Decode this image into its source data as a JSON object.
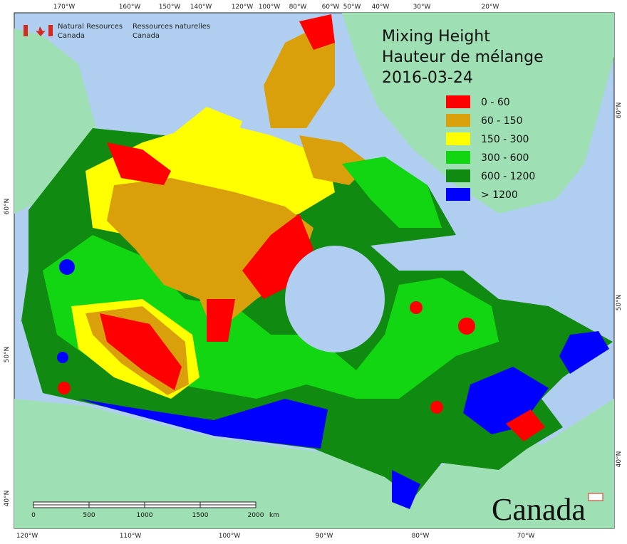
{
  "header": {
    "org_en": [
      "Natural Resources",
      "Canada"
    ],
    "org_fr": [
      "Ressources naturelles",
      "Canada"
    ]
  },
  "title": [
    "Mixing Height",
    "Hauteur de mélange",
    "2016-03-24"
  ],
  "legend": [
    {
      "label": "0 - 60",
      "color": "#ff0000"
    },
    {
      "label": "60 - 150",
      "color": "#daa00c"
    },
    {
      "label": "150 - 300",
      "color": "#ffff00"
    },
    {
      "label": "300 - 600",
      "color": "#11d611"
    },
    {
      "label": "600 - 1200",
      "color": "#108a10"
    },
    {
      "label": "> 1200",
      "color": "#0000ff"
    }
  ],
  "top_labels": [
    "170°W",
    "160°W",
    "150°W",
    "140°W",
    "120°W",
    "100°W",
    "80°W",
    "60°W",
    "50°W",
    "40°W",
    "30°W",
    "20°W"
  ],
  "bottom_labels": [
    "120°W",
    "110°W",
    "100°W",
    "90°W",
    "80°W",
    "70°W"
  ],
  "left_labels": [
    "60°N",
    "50°N",
    "40°N"
  ],
  "right_labels": [
    "60°N",
    "50°N",
    "40°N"
  ],
  "scale": {
    "ticks": [
      0,
      500,
      1000,
      1500,
      2000
    ],
    "unit": "km"
  },
  "wordmark": "Canada"
}
